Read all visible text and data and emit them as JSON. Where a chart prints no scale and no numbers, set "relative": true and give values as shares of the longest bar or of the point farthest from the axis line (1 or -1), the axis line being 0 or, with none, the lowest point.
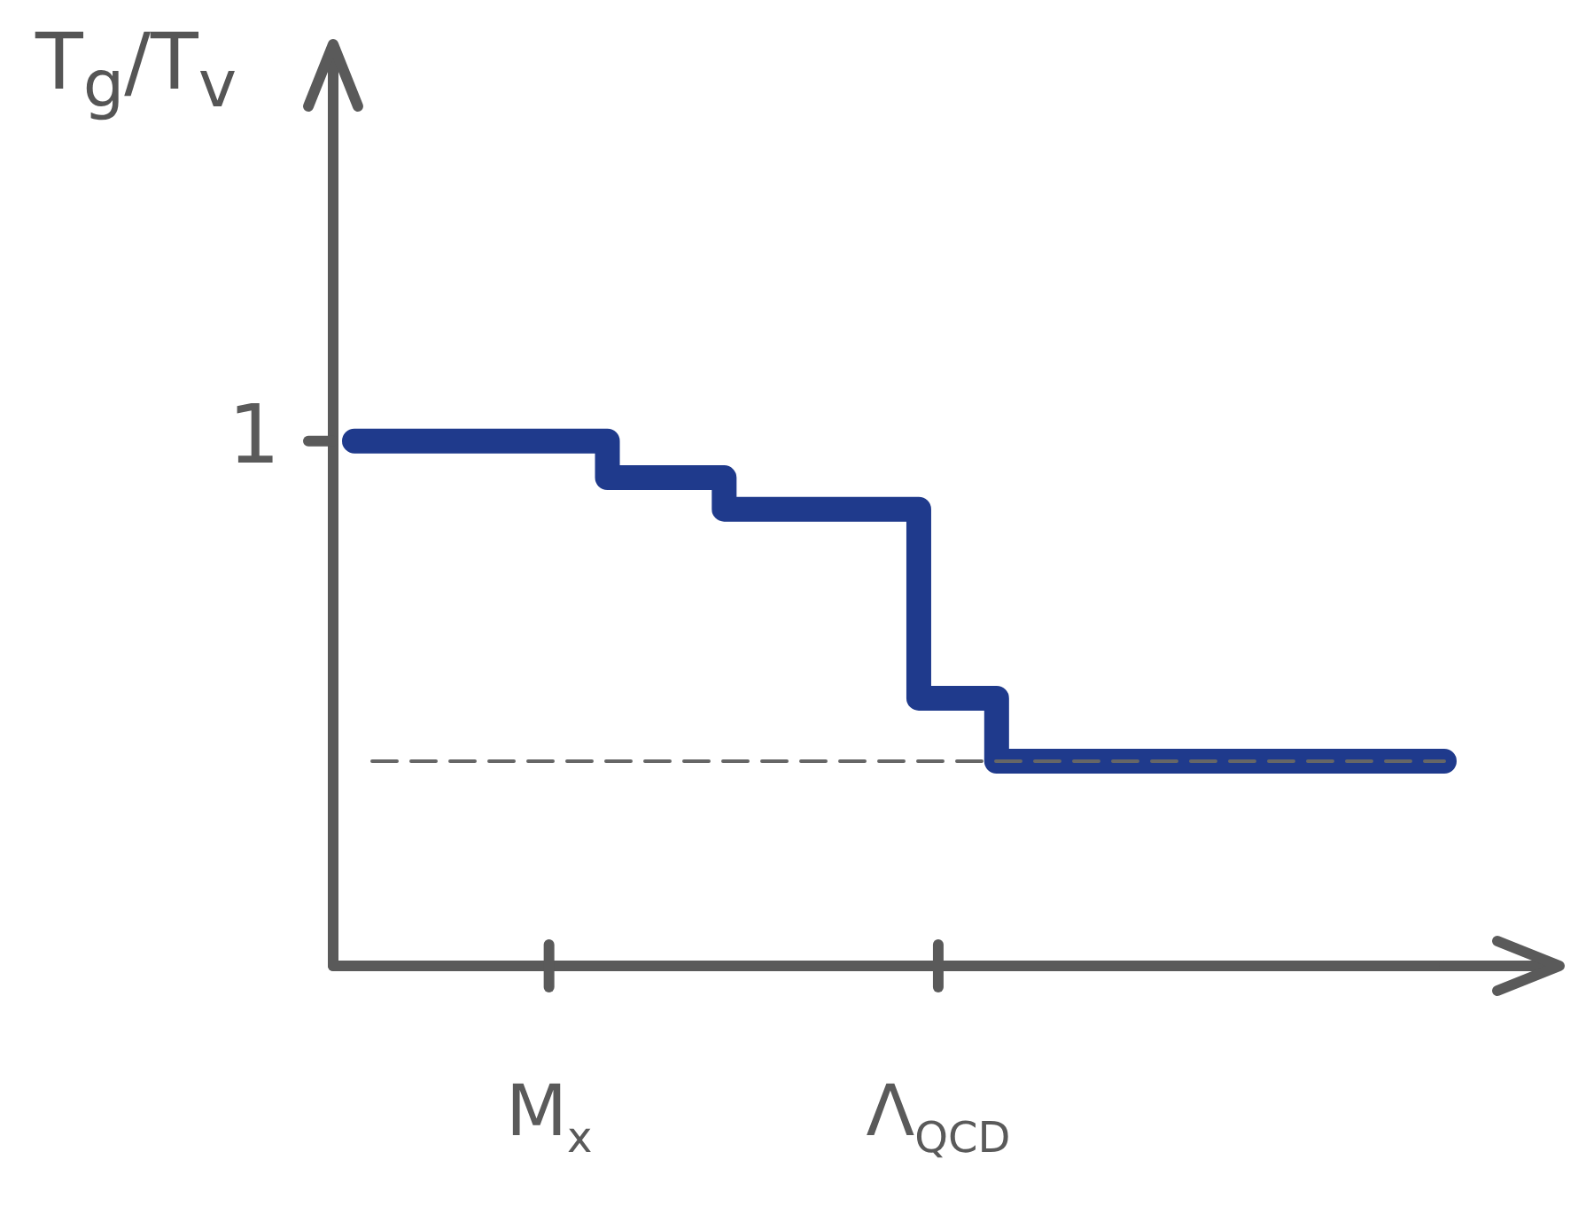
{
  "chart_data": {
    "type": "step",
    "relative": true,
    "ylabel": "T$_{g}$/T$_{v}$",
    "categories": [
      null,
      null,
      null,
      null,
      null,
      "M$_{x}$",
      null,
      null,
      null,
      null,
      null,
      null,
      null,
      null,
      null,
      "Λ$_{QCD}$",
      null,
      null,
      null,
      null,
      null,
      null,
      null,
      null,
      null,
      null,
      null,
      null,
      null
    ],
    "series": [
      {
        "color": "#1f3a8c",
        "values": [
          1,
          1,
          1,
          1,
          1,
          1,
          1,
          0.93,
          0.93,
          0.93,
          0.87,
          0.87,
          0.87,
          0.87,
          0.87,
          0.51,
          0.51,
          0.39,
          0.39,
          0.39,
          0.39,
          0.39,
          0.39,
          0.39,
          0.39,
          0.39,
          0.39,
          0.39,
          0.39
        ]
      }
    ],
    "ref_lines": [
      {
        "axis": "y",
        "value": 0.39,
        "line_style": "dashed",
        "color": "#666666"
      }
    ],
    "annotations": [
      "1"
    ],
    "legend": false,
    "marker": "none",
    "grid": false
  }
}
